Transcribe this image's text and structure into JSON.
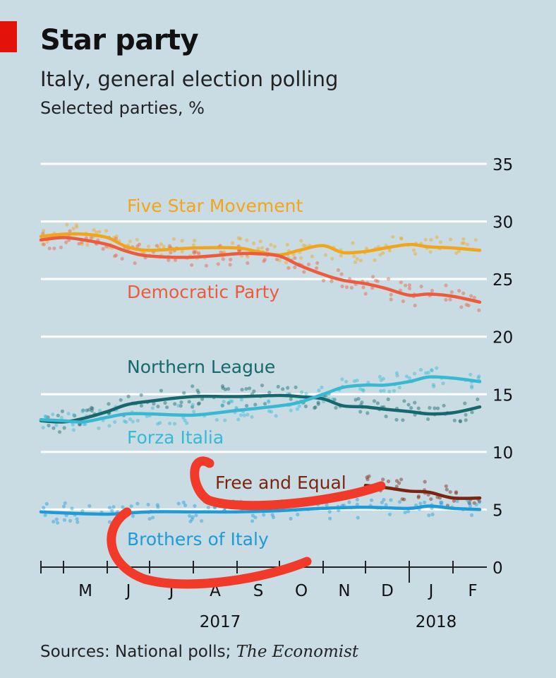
{
  "title": "Star party",
  "subtitle": "Italy, general election polling",
  "unit": "Selected parties, %",
  "source_prefix": "Sources: National polls; ",
  "source_italic": "The Economist",
  "colors": {
    "background": "#c9dce4",
    "five_star": "#f2a51a",
    "democratic": "#ee5a3c",
    "northern_league": "#15686b",
    "forza_italia": "#38b9d3",
    "free_and_equal": "#7b2410",
    "brothers": "#1f9bd7",
    "annotation": "#f23a2a"
  },
  "chart_data": {
    "type": "line",
    "title": "Star party",
    "subtitle": "Italy, general election polling",
    "ylabel": "Selected parties, %",
    "ylim": [
      0,
      35
    ],
    "yticks": [
      0,
      5,
      10,
      15,
      20,
      25,
      30,
      35
    ],
    "xlim": [
      "2017-04-15",
      "2018-02-20"
    ],
    "month_ticks": [
      {
        "label": "M",
        "date": "2017-05"
      },
      {
        "label": "J",
        "date": "2017-06"
      },
      {
        "label": "J",
        "date": "2017-07"
      },
      {
        "label": "A",
        "date": "2017-08"
      },
      {
        "label": "S",
        "date": "2017-09"
      },
      {
        "label": "O",
        "date": "2017-10"
      },
      {
        "label": "N",
        "date": "2017-11"
      },
      {
        "label": "D",
        "date": "2017-12"
      },
      {
        "label": "J",
        "date": "2018-01"
      },
      {
        "label": "F",
        "date": "2018-02"
      }
    ],
    "year_labels": [
      {
        "label": "2017",
        "date": "2017-08-20"
      },
      {
        "label": "2018",
        "date": "2018-01-20"
      }
    ],
    "grid": true,
    "series": [
      {
        "name": "Five Star Movement",
        "key": "five_star",
        "x": [
          "2017-04-15",
          "2017-05-01",
          "2017-05-15",
          "2017-06-01",
          "2017-06-15",
          "2017-07-01",
          "2017-08-01",
          "2017-09-01",
          "2017-09-15",
          "2017-10-01",
          "2017-10-15",
          "2017-11-01",
          "2017-11-15",
          "2017-12-01",
          "2017-12-15",
          "2018-01-01",
          "2018-01-15",
          "2018-02-01",
          "2018-02-20"
        ],
        "values": [
          28.7,
          28.9,
          28.9,
          28.6,
          27.8,
          27.5,
          27.7,
          27.7,
          27.4,
          27.1,
          27.5,
          27.9,
          27.3,
          27.4,
          27.7,
          28.0,
          27.8,
          27.7,
          27.5
        ]
      },
      {
        "name": "Democratic Party",
        "key": "democratic",
        "x": [
          "2017-04-15",
          "2017-05-01",
          "2017-05-15",
          "2017-06-01",
          "2017-06-15",
          "2017-07-01",
          "2017-08-01",
          "2017-09-01",
          "2017-09-15",
          "2017-10-01",
          "2017-10-15",
          "2017-11-01",
          "2017-11-15",
          "2017-12-01",
          "2017-12-15",
          "2018-01-01",
          "2018-01-15",
          "2018-02-01",
          "2018-02-20"
        ],
        "values": [
          28.4,
          28.6,
          28.4,
          28.0,
          27.4,
          27.0,
          26.9,
          27.2,
          27.2,
          27.0,
          26.2,
          25.4,
          24.9,
          24.6,
          24.2,
          23.6,
          23.7,
          23.5,
          23.0
        ]
      },
      {
        "name": "Northern League",
        "key": "northern_league",
        "x": [
          "2017-04-15",
          "2017-05-01",
          "2017-05-15",
          "2017-06-01",
          "2017-06-15",
          "2017-07-01",
          "2017-08-01",
          "2017-09-01",
          "2017-10-01",
          "2017-10-15",
          "2017-11-01",
          "2017-11-15",
          "2017-12-01",
          "2017-12-15",
          "2018-01-01",
          "2018-01-15",
          "2018-02-01",
          "2018-02-20"
        ],
        "values": [
          12.7,
          12.6,
          12.9,
          13.5,
          14.1,
          14.4,
          14.8,
          14.8,
          14.9,
          14.8,
          14.6,
          14.0,
          13.9,
          13.7,
          13.5,
          13.3,
          13.4,
          13.9
        ]
      },
      {
        "name": "Forza Italia",
        "key": "forza_italia",
        "x": [
          "2017-04-15",
          "2017-05-01",
          "2017-05-15",
          "2017-06-01",
          "2017-06-15",
          "2017-07-01",
          "2017-08-01",
          "2017-09-01",
          "2017-10-01",
          "2017-10-15",
          "2017-11-01",
          "2017-11-15",
          "2017-12-01",
          "2017-12-15",
          "2018-01-01",
          "2018-01-15",
          "2018-02-01",
          "2018-02-20"
        ],
        "values": [
          12.8,
          12.7,
          12.6,
          13.0,
          13.3,
          13.3,
          13.2,
          13.6,
          14.0,
          14.3,
          15.0,
          15.6,
          15.8,
          15.8,
          16.1,
          16.5,
          16.4,
          16.1
        ]
      },
      {
        "name": "Free and Equal",
        "key": "free_and_equal",
        "x": [
          "2017-12-01",
          "2017-12-15",
          "2018-01-01",
          "2018-01-15",
          "2018-02-01",
          "2018-02-20"
        ],
        "values": [
          7.1,
          6.9,
          6.6,
          6.5,
          6.0,
          6.0
        ]
      },
      {
        "name": "Brothers of Italy",
        "key": "brothers",
        "x": [
          "2017-04-15",
          "2017-05-01",
          "2017-06-01",
          "2017-07-01",
          "2017-08-01",
          "2017-09-01",
          "2017-10-01",
          "2017-11-01",
          "2017-12-01",
          "2018-01-01",
          "2018-01-15",
          "2018-02-01",
          "2018-02-20"
        ],
        "values": [
          4.8,
          4.7,
          4.6,
          4.8,
          4.8,
          4.8,
          4.9,
          5.1,
          5.2,
          5.1,
          5.3,
          5.1,
          5.0
        ]
      }
    ]
  }
}
